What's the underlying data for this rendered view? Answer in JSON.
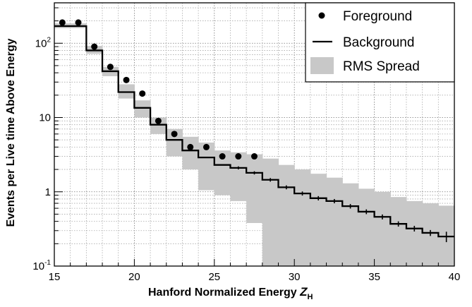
{
  "chart_data": {
    "type": "line",
    "xlabel": "Hanford Normalized Energy",
    "xlabel_var": "Z",
    "xlabel_sub": "H",
    "ylabel": "Events per Live time Above Energy",
    "x_range": [
      15,
      40
    ],
    "y_range": [
      0.1,
      350
    ],
    "y_scale": "log",
    "grid": true,
    "legend_placement": "top-right",
    "x_ticks": [
      {
        "value": 15,
        "label": "15"
      },
      {
        "value": 20,
        "label": "20"
      },
      {
        "value": 25,
        "label": "25"
      },
      {
        "value": 30,
        "label": "30"
      },
      {
        "value": 35,
        "label": "35"
      },
      {
        "value": 40,
        "label": "40"
      }
    ],
    "y_ticks": [
      {
        "value": 100,
        "base": "10",
        "exp": "2"
      },
      {
        "value": 10,
        "base": "10",
        "exp": ""
      },
      {
        "value": 1,
        "base": "1",
        "exp": ""
      },
      {
        "value": 0.1,
        "base": "10",
        "exp": "-1"
      }
    ],
    "series": [
      {
        "name": "Foreground",
        "kind": "points",
        "color": "#000000",
        "x": [
          15.5,
          16.5,
          17.5,
          18.5,
          19.5,
          20.5,
          21.5,
          22.5,
          23.5,
          24.5,
          25.5,
          26.5,
          27.5
        ],
        "y": [
          190,
          190,
          90,
          48,
          32,
          21,
          9,
          6,
          4,
          4,
          3,
          3,
          3
        ]
      },
      {
        "name": "Background",
        "kind": "step",
        "color": "#000000",
        "bin_edges": [
          15,
          16,
          17,
          18,
          19,
          20,
          21,
          22,
          23,
          24,
          25,
          26,
          27,
          28,
          29,
          30,
          31,
          32,
          33,
          34,
          35,
          36,
          37,
          38,
          39,
          40
        ],
        "y": [
          170,
          170,
          80,
          42,
          22,
          13.5,
          8,
          5,
          3.6,
          2.9,
          2.3,
          2.1,
          1.8,
          1.45,
          1.15,
          0.95,
          0.82,
          0.75,
          0.64,
          0.54,
          0.46,
          0.37,
          0.32,
          0.28,
          0.25
        ],
        "error": [
          0,
          0,
          0,
          0,
          0,
          0,
          0,
          0,
          0,
          0,
          0,
          0.1,
          0.09,
          0.08,
          0.07,
          0.06,
          0.055,
          0.05,
          0.045,
          0.04,
          0.035,
          0.03,
          0.028,
          0.026,
          0.04
        ]
      },
      {
        "name": "RMS Spread",
        "kind": "band",
        "color": "#c8c8c8",
        "bin_edges": [
          15,
          16,
          17,
          18,
          19,
          20,
          21,
          22,
          23,
          24,
          25,
          26,
          27,
          28,
          29,
          30,
          31,
          32,
          33,
          34,
          35,
          36,
          37,
          38,
          39,
          40
        ],
        "low": [
          160,
          160,
          72,
          36,
          18,
          10,
          6,
          3,
          2,
          1.05,
          0.9,
          0.75,
          0.38,
          0.1,
          0.1,
          0.1,
          0.1,
          0.1,
          0.1,
          0.1,
          0.1,
          0.1,
          0.1,
          0.1,
          0.1
        ],
        "high": [
          185,
          185,
          92,
          48,
          28,
          17,
          10,
          7,
          5.5,
          4.6,
          3.6,
          3.4,
          3.2,
          2.8,
          2.3,
          2.0,
          1.75,
          1.55,
          1.3,
          1.1,
          1.0,
          0.85,
          0.75,
          0.7,
          0.65
        ]
      }
    ]
  }
}
